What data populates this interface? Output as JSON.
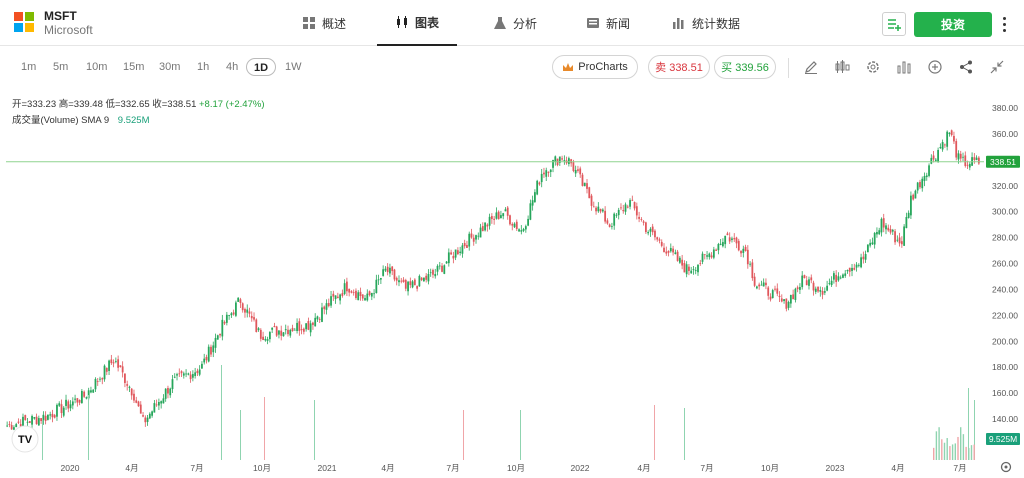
{
  "header": {
    "symbol": "MSFT",
    "company": "Microsoft",
    "tabs": [
      {
        "label": "概述",
        "icon": "grid-icon"
      },
      {
        "label": "图表",
        "icon": "candlestick-icon"
      },
      {
        "label": "分析",
        "icon": "flask-icon"
      },
      {
        "label": "新闻",
        "icon": "newspaper-icon"
      },
      {
        "label": "统计数据",
        "icon": "bar-stats-icon"
      }
    ],
    "active_tab": "图表",
    "invest_label": "投资"
  },
  "toolbar": {
    "timeframes": [
      "1m",
      "5m",
      "10m",
      "15m",
      "30m",
      "1h",
      "4h",
      "1D",
      "1W"
    ],
    "active_timeframe": "1D",
    "prochart_label": "ProCharts",
    "sell_label": "卖 338.51",
    "buy_label": "买 339.56"
  },
  "legend": {
    "open": "开=333.23",
    "high": "高=339.48",
    "low": "低=332.65",
    "close": "收=338.51",
    "change": "+8.17 (+2.47%)",
    "volume_label": "成交量(Volume)",
    "sma_label": "SMA 9",
    "volume_value": "9.525M"
  },
  "chart_data": {
    "type": "candlestick",
    "y_ticks": [
      380,
      360,
      340,
      320,
      300,
      280,
      260,
      240,
      220,
      200,
      180,
      160,
      140
    ],
    "x_ticks": [
      "2020",
      "4月",
      "7月",
      "10月",
      "2021",
      "4月",
      "7月",
      "10月",
      "2022",
      "4月",
      "7月",
      "10月",
      "2023",
      "4月",
      "7月"
    ],
    "ylim": [
      130,
      385
    ],
    "current_price": 338.51,
    "current_price_label": "338.51",
    "volume_label": "9.525M",
    "colors": {
      "up": "#26a65b",
      "down": "#e0565b",
      "price_line": "#8fd48f"
    },
    "close_anchors": [
      [
        0,
        135
      ],
      [
        0.04,
        142
      ],
      [
        0.08,
        158
      ],
      [
        0.11,
        186
      ],
      [
        0.13,
        160
      ],
      [
        0.14,
        137
      ],
      [
        0.17,
        168
      ],
      [
        0.2,
        180
      ],
      [
        0.22,
        210
      ],
      [
        0.24,
        232
      ],
      [
        0.26,
        205
      ],
      [
        0.29,
        210
      ],
      [
        0.31,
        213
      ],
      [
        0.33,
        228
      ],
      [
        0.35,
        243
      ],
      [
        0.37,
        232
      ],
      [
        0.39,
        255
      ],
      [
        0.41,
        240
      ],
      [
        0.44,
        252
      ],
      [
        0.46,
        268
      ],
      [
        0.49,
        288
      ],
      [
        0.51,
        300
      ],
      [
        0.53,
        285
      ],
      [
        0.55,
        330
      ],
      [
        0.57,
        343
      ],
      [
        0.58,
        338
      ],
      [
        0.6,
        310
      ],
      [
        0.62,
        290
      ],
      [
        0.64,
        308
      ],
      [
        0.66,
        285
      ],
      [
        0.68,
        270
      ],
      [
        0.7,
        255
      ],
      [
        0.72,
        265
      ],
      [
        0.74,
        282
      ],
      [
        0.76,
        270
      ],
      [
        0.77,
        245
      ],
      [
        0.79,
        235
      ],
      [
        0.8,
        228
      ],
      [
        0.82,
        248
      ],
      [
        0.84,
        240
      ],
      [
        0.86,
        255
      ],
      [
        0.88,
        262
      ],
      [
        0.9,
        292
      ],
      [
        0.92,
        275
      ],
      [
        0.93,
        310
      ],
      [
        0.95,
        338
      ],
      [
        0.97,
        362
      ],
      [
        0.98,
        338
      ]
    ]
  }
}
